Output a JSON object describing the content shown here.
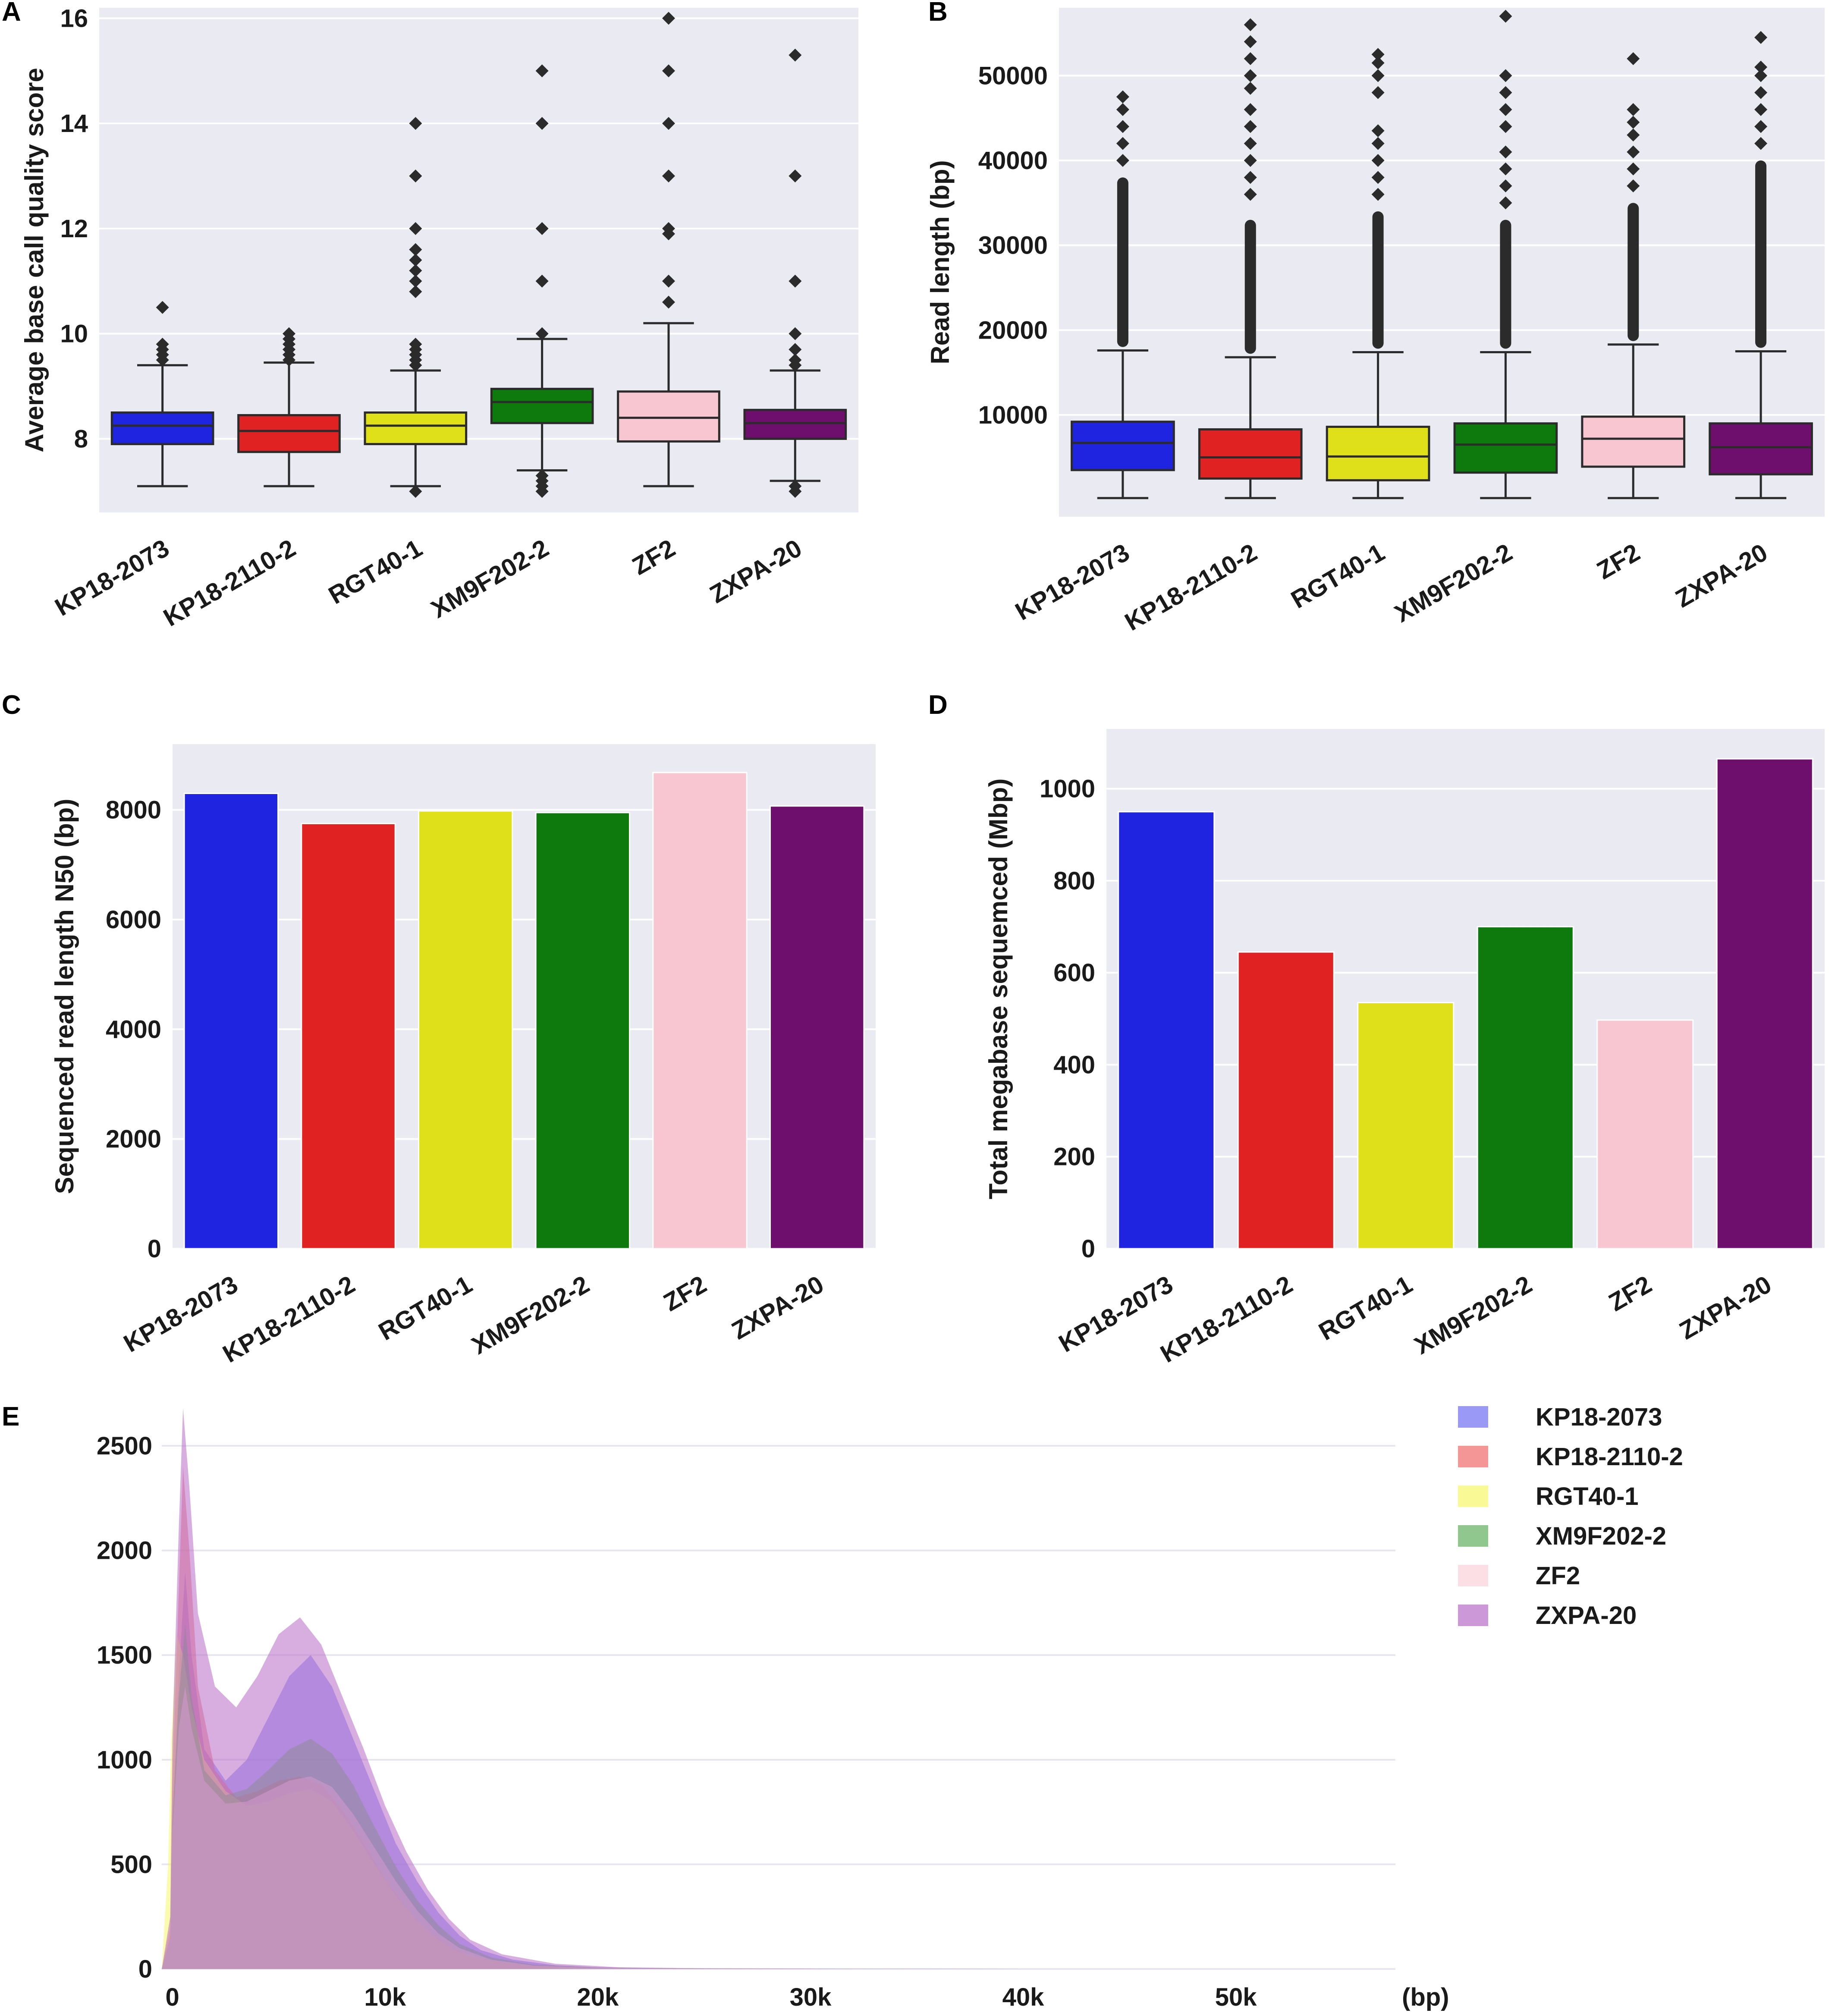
{
  "figure": {
    "panels": [
      "A",
      "B",
      "C",
      "D",
      "E"
    ]
  },
  "chart_data": [
    {
      "id": "A",
      "type": "box",
      "title": "",
      "xlabel": "",
      "ylabel": "Average base call quality score",
      "ylim": [
        6.6,
        16.2
      ],
      "yticks": [
        8,
        10,
        12,
        14,
        16
      ],
      "grid": true,
      "categories": [
        "KP18-2073",
        "KP18-2110-2",
        "RGT40-1",
        "XM9F202-2",
        "ZF2",
        "ZXPA-20"
      ],
      "colors": [
        "#1f24e0",
        "#e02222",
        "#e0e01a",
        "#0e7a0e",
        "#f7c6d0",
        "#6e0f6e"
      ],
      "boxes": [
        {
          "whisker_low": 7.1,
          "q1": 7.9,
          "median": 8.25,
          "q3": 8.5,
          "whisker_high": 9.4,
          "outliers": [
            9.5,
            9.6,
            9.7,
            9.8,
            10.5
          ]
        },
        {
          "whisker_low": 7.1,
          "q1": 7.75,
          "median": 8.15,
          "q3": 8.45,
          "whisker_high": 9.45,
          "outliers": [
            9.5,
            9.6,
            9.7,
            9.8,
            9.9,
            10.0
          ]
        },
        {
          "whisker_low": 7.1,
          "q1": 7.9,
          "median": 8.25,
          "q3": 8.5,
          "whisker_high": 9.3,
          "outliers": [
            7.0,
            9.4,
            9.5,
            9.6,
            9.7,
            9.8,
            10.8,
            11.0,
            11.2,
            11.4,
            11.6,
            12.0,
            13.0,
            14.0
          ]
        },
        {
          "whisker_low": 7.4,
          "q1": 8.3,
          "median": 8.7,
          "q3": 8.95,
          "whisker_high": 9.9,
          "outliers": [
            7.0,
            7.1,
            7.2,
            7.3,
            10.0,
            11.0,
            12.0,
            14.0,
            15.0
          ]
        },
        {
          "whisker_low": 7.1,
          "q1": 7.95,
          "median": 8.4,
          "q3": 8.9,
          "whisker_high": 10.2,
          "outliers": [
            10.6,
            11.0,
            11.9,
            12.0,
            13.0,
            14.0,
            15.0,
            16.0
          ]
        },
        {
          "whisker_low": 7.2,
          "q1": 8.0,
          "median": 8.3,
          "q3": 8.55,
          "whisker_high": 9.3,
          "outliers": [
            7.0,
            7.1,
            9.4,
            9.5,
            9.7,
            10.0,
            11.0,
            13.0,
            15.3
          ]
        }
      ]
    },
    {
      "id": "B",
      "type": "box",
      "title": "",
      "xlabel": "",
      "ylabel": "Read length (bp)",
      "ylim": [
        -2000,
        58000
      ],
      "yticks": [
        10000,
        20000,
        30000,
        40000,
        50000
      ],
      "grid": true,
      "categories": [
        "KP18-2073",
        "KP18-2110-2",
        "RGT40-1",
        "XM9F202-2",
        "ZF2",
        "ZXPA-20"
      ],
      "colors": [
        "#1f24e0",
        "#e02222",
        "#e0e01a",
        "#0e7a0e",
        "#f7c6d0",
        "#6e0f6e"
      ],
      "boxes": [
        {
          "whisker_low": 200,
          "q1": 3500,
          "median": 6700,
          "q3": 9200,
          "whisker_high": 17600,
          "dense_to": 38000,
          "outliers": [
            40000,
            42000,
            44000,
            46000,
            47500
          ]
        },
        {
          "whisker_low": 200,
          "q1": 2500,
          "median": 5000,
          "q3": 8300,
          "whisker_high": 16800,
          "dense_to": 33000,
          "outliers": [
            36000,
            38000,
            40000,
            42000,
            44000,
            46000,
            48500,
            50000,
            52000,
            54000,
            56000
          ]
        },
        {
          "whisker_low": 200,
          "q1": 2300,
          "median": 5100,
          "q3": 8600,
          "whisker_high": 17400,
          "dense_to": 34000,
          "outliers": [
            36000,
            38000,
            40000,
            42000,
            43500,
            48000,
            50000,
            51500,
            52500
          ]
        },
        {
          "whisker_low": 200,
          "q1": 3200,
          "median": 6500,
          "q3": 9000,
          "whisker_high": 17400,
          "dense_to": 33000,
          "outliers": [
            35000,
            37000,
            39000,
            41000,
            44000,
            46000,
            48000,
            50000,
            57000
          ]
        },
        {
          "whisker_low": 200,
          "q1": 3900,
          "median": 7200,
          "q3": 9800,
          "whisker_high": 18300,
          "dense_to": 35000,
          "outliers": [
            37000,
            39000,
            41000,
            43000,
            44500,
            46000,
            52000
          ]
        },
        {
          "whisker_low": 200,
          "q1": 3000,
          "median": 6200,
          "q3": 9000,
          "whisker_high": 17500,
          "dense_to": 40000,
          "outliers": [
            42000,
            44000,
            46000,
            48000,
            50000,
            51000,
            54500
          ]
        }
      ]
    },
    {
      "id": "C",
      "type": "bar",
      "title": "",
      "xlabel": "",
      "ylabel": "Sequenced read length N50 (bp)",
      "ylim": [
        0,
        9200
      ],
      "yticks": [
        0,
        2000,
        4000,
        6000,
        8000
      ],
      "grid": true,
      "categories": [
        "KP18-2073",
        "KP18-2110-2",
        "RGT40-1",
        "XM9F202-2",
        "ZF2",
        "ZXPA-20"
      ],
      "colors": [
        "#1f24e0",
        "#e02222",
        "#e0e01a",
        "#0e7a0e",
        "#f7c6d0",
        "#6e0f6e"
      ],
      "values": [
        8300,
        7750,
        7980,
        7950,
        8680,
        8070
      ]
    },
    {
      "id": "D",
      "type": "bar",
      "title": "",
      "xlabel": "",
      "ylabel": "Total megabase sequemced (Mbp)",
      "ylim": [
        0,
        1130
      ],
      "yticks": [
        0,
        200,
        400,
        600,
        800,
        1000
      ],
      "grid": true,
      "categories": [
        "KP18-2073",
        "KP18-2110-2",
        "RGT40-1",
        "XM9F202-2",
        "ZF2",
        "ZXPA-20"
      ],
      "colors": [
        "#1f24e0",
        "#e02222",
        "#e0e01a",
        "#0e7a0e",
        "#f7c6d0",
        "#6e0f6e"
      ],
      "values": [
        950,
        645,
        535,
        700,
        497,
        1065
      ]
    },
    {
      "id": "E",
      "type": "area",
      "title": "",
      "xlabel": "(bp)",
      "ylabel": "",
      "xlim": [
        -500,
        57500
      ],
      "ylim": [
        0,
        2700
      ],
      "xticks": [
        0,
        10000,
        20000,
        30000,
        40000,
        50000
      ],
      "xtick_labels": [
        "0",
        "10k",
        "20k",
        "30k",
        "40k",
        "50k"
      ],
      "yticks": [
        0,
        500,
        1000,
        1500,
        2000,
        2500
      ],
      "grid": true,
      "legend_position": "right",
      "series": [
        {
          "name": "KP18-2073",
          "color": "#6f6ff2",
          "points": [
            [
              -500,
              0
            ],
            [
              -100,
              150
            ],
            [
              0,
              700
            ],
            [
              300,
              1400
            ],
            [
              600,
              1900
            ],
            [
              900,
              1500
            ],
            [
              1500,
              1050
            ],
            [
              2500,
              900
            ],
            [
              3500,
              1000
            ],
            [
              4500,
              1200
            ],
            [
              5500,
              1400
            ],
            [
              6500,
              1500
            ],
            [
              7500,
              1350
            ],
            [
              8500,
              1100
            ],
            [
              9500,
              850
            ],
            [
              10500,
              600
            ],
            [
              11500,
              420
            ],
            [
              12500,
              270
            ],
            [
              13500,
              160
            ],
            [
              14500,
              90
            ],
            [
              16000,
              45
            ],
            [
              18000,
              18
            ],
            [
              20000,
              8
            ],
            [
              24000,
              3
            ],
            [
              30000,
              1
            ],
            [
              40000,
              0
            ],
            [
              57500,
              0
            ]
          ]
        },
        {
          "name": "KP18-2110-2",
          "color": "#f06a6a",
          "points": [
            [
              -500,
              0
            ],
            [
              -100,
              200
            ],
            [
              0,
              900
            ],
            [
              300,
              1800
            ],
            [
              500,
              2400
            ],
            [
              800,
              2000
            ],
            [
              1200,
              1350
            ],
            [
              2000,
              950
            ],
            [
              3000,
              820
            ],
            [
              4000,
              850
            ],
            [
              5000,
              900
            ],
            [
              6000,
              920
            ],
            [
              7000,
              880
            ],
            [
              8000,
              760
            ],
            [
              9000,
              600
            ],
            [
              10000,
              430
            ],
            [
              11000,
              290
            ],
            [
              12000,
              180
            ],
            [
              13000,
              110
            ],
            [
              14000,
              60
            ],
            [
              16000,
              25
            ],
            [
              18000,
              10
            ],
            [
              22000,
              3
            ],
            [
              30000,
              1
            ],
            [
              40000,
              0
            ],
            [
              57500,
              0
            ]
          ]
        },
        {
          "name": "RGT40-1",
          "color": "#f7f76a",
          "points": [
            [
              -500,
              0
            ],
            [
              -200,
              500
            ],
            [
              -50,
              1100
            ],
            [
              200,
              1600
            ],
            [
              500,
              1500
            ],
            [
              900,
              1250
            ],
            [
              1500,
              1000
            ],
            [
              2500,
              850
            ],
            [
              3500,
              780
            ],
            [
              4500,
              800
            ],
            [
              5500,
              840
            ],
            [
              6500,
              860
            ],
            [
              7500,
              800
            ],
            [
              8500,
              660
            ],
            [
              9500,
              500
            ],
            [
              10500,
              350
            ],
            [
              11500,
              230
            ],
            [
              12500,
              140
            ],
            [
              13500,
              80
            ],
            [
              15000,
              40
            ],
            [
              17000,
              15
            ],
            [
              20000,
              5
            ],
            [
              25000,
              2
            ],
            [
              35000,
              0
            ],
            [
              57500,
              0
            ]
          ]
        },
        {
          "name": "XM9F202-2",
          "color": "#5faf5f",
          "points": [
            [
              -500,
              0
            ],
            [
              -100,
              150
            ],
            [
              0,
              700
            ],
            [
              300,
              1300
            ],
            [
              600,
              1650
            ],
            [
              900,
              1300
            ],
            [
              1500,
              950
            ],
            [
              2500,
              830
            ],
            [
              3500,
              860
            ],
            [
              4500,
              950
            ],
            [
              5500,
              1050
            ],
            [
              6500,
              1100
            ],
            [
              7500,
              1030
            ],
            [
              8500,
              880
            ],
            [
              9500,
              680
            ],
            [
              10500,
              490
            ],
            [
              11500,
              330
            ],
            [
              12500,
              210
            ],
            [
              13500,
              120
            ],
            [
              15000,
              55
            ],
            [
              17000,
              20
            ],
            [
              20000,
              7
            ],
            [
              25000,
              2
            ],
            [
              35000,
              0
            ],
            [
              57500,
              0
            ]
          ]
        },
        {
          "name": "ZF2",
          "color": "#f9d2da",
          "points": [
            [
              -500,
              0
            ],
            [
              -100,
              150
            ],
            [
              0,
              650
            ],
            [
              300,
              1150
            ],
            [
              600,
              1350
            ],
            [
              900,
              1150
            ],
            [
              1500,
              900
            ],
            [
              2500,
              790
            ],
            [
              3500,
              800
            ],
            [
              4500,
              850
            ],
            [
              5500,
              900
            ],
            [
              6500,
              920
            ],
            [
              7500,
              870
            ],
            [
              8500,
              740
            ],
            [
              9500,
              580
            ],
            [
              10500,
              420
            ],
            [
              11500,
              280
            ],
            [
              12500,
              170
            ],
            [
              13500,
              100
            ],
            [
              15000,
              45
            ],
            [
              17000,
              16
            ],
            [
              20000,
              6
            ],
            [
              25000,
              2
            ],
            [
              35000,
              0
            ],
            [
              57500,
              0
            ]
          ]
        },
        {
          "name": "ZXPA-20",
          "color": "#b86cc8",
          "points": [
            [
              -500,
              0
            ],
            [
              -100,
              250
            ],
            [
              0,
              1100
            ],
            [
              300,
              2100
            ],
            [
              500,
              2680
            ],
            [
              800,
              2300
            ],
            [
              1200,
              1700
            ],
            [
              2000,
              1350
            ],
            [
              3000,
              1250
            ],
            [
              4000,
              1400
            ],
            [
              5000,
              1600
            ],
            [
              6000,
              1680
            ],
            [
              7000,
              1550
            ],
            [
              8000,
              1300
            ],
            [
              9000,
              1050
            ],
            [
              10000,
              780
            ],
            [
              11000,
              560
            ],
            [
              12000,
              380
            ],
            [
              13000,
              240
            ],
            [
              14000,
              140
            ],
            [
              15500,
              70
            ],
            [
              18000,
              25
            ],
            [
              21000,
              8
            ],
            [
              25000,
              3
            ],
            [
              32000,
              1
            ],
            [
              40000,
              0
            ],
            [
              57500,
              0
            ]
          ]
        }
      ]
    }
  ]
}
